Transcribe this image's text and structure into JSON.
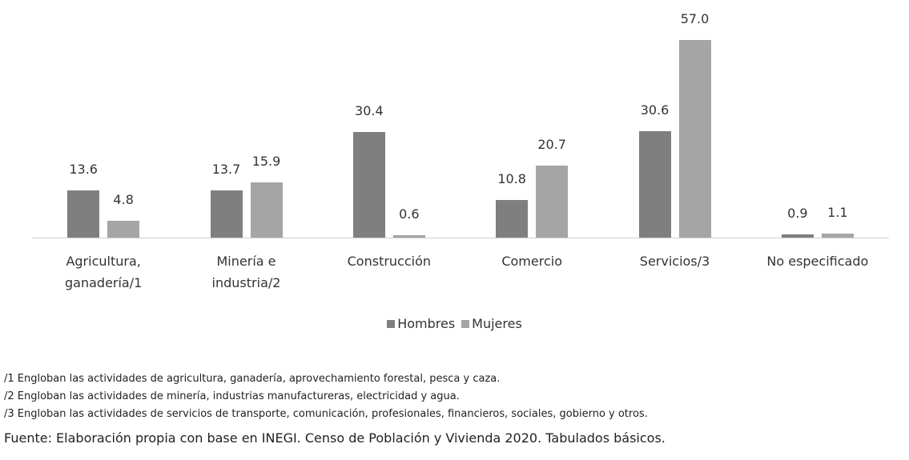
{
  "chart_data": {
    "type": "bar",
    "categories": [
      "Agricultura, ganadería/1",
      "Minería e industria/2",
      "Construcción",
      "Comercio",
      "Servicios/3",
      "No especificado"
    ],
    "series": [
      {
        "name": "Hombres",
        "color": "#7f7f7f",
        "values": [
          13.6,
          13.7,
          30.4,
          10.8,
          30.6,
          0.9
        ],
        "value_labels": [
          "13.6",
          "13.7",
          "30.4",
          "10.8",
          "30.6",
          "0.9"
        ]
      },
      {
        "name": "Mujeres",
        "color": "#a5a5a5",
        "values": [
          4.8,
          15.9,
          0.6,
          20.7,
          57.0,
          1.1
        ],
        "value_labels": [
          "4.8",
          "15.9",
          "0.6",
          "20.7",
          "57.0",
          "1.1"
        ]
      }
    ],
    "notes": [
      "/1 Engloban las actividades de agricultura, ganadería, aprovechamiento forestal, pesca y caza.",
      "/2 Engloban las actividades de minería, industrias manufactureras, electricidad y agua.",
      "/3 Engloban las actividades de servicios de transporte, comunicación, profesionales, financieros, sociales, gobierno y otros."
    ],
    "source": "Fuente: Elaboración propia con base en INEGI. Censo de Población y Vivienda 2020. Tabulados básicos."
  }
}
